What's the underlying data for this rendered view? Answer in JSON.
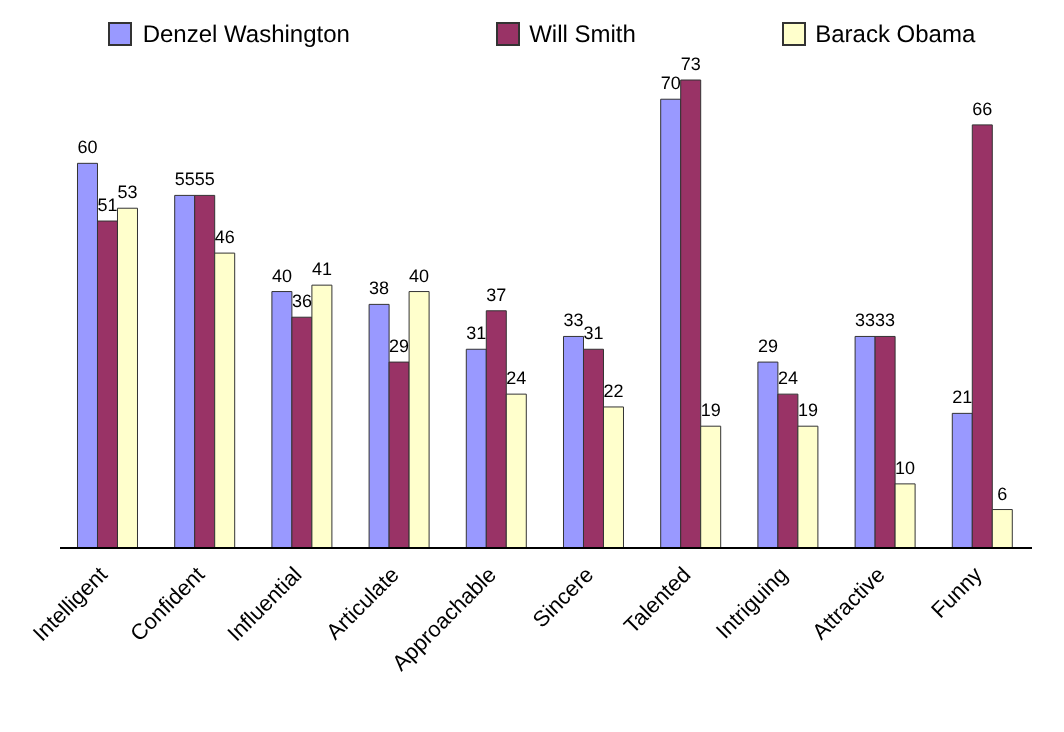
{
  "chart_data": {
    "type": "bar",
    "categories": [
      "Intelligent",
      "Confident",
      "Influential",
      "Articulate",
      "Approachable",
      "Sincere",
      "Talented",
      "Intriguing",
      "Attractive",
      "Funny"
    ],
    "series": [
      {
        "name": "Denzel Washington",
        "color": "#9999ff",
        "values": [
          60,
          55,
          40,
          38,
          31,
          33,
          70,
          29,
          33,
          21
        ]
      },
      {
        "name": "Will Smith",
        "color": "#993366",
        "values": [
          51,
          55,
          36,
          29,
          37,
          31,
          73,
          24,
          33,
          66
        ]
      },
      {
        "name": "Barack Obama",
        "color": "#ffffcc",
        "values": [
          53,
          46,
          41,
          40,
          24,
          22,
          19,
          19,
          10,
          6
        ]
      }
    ],
    "data_labels": true,
    "legend": "top",
    "grid": false
  }
}
